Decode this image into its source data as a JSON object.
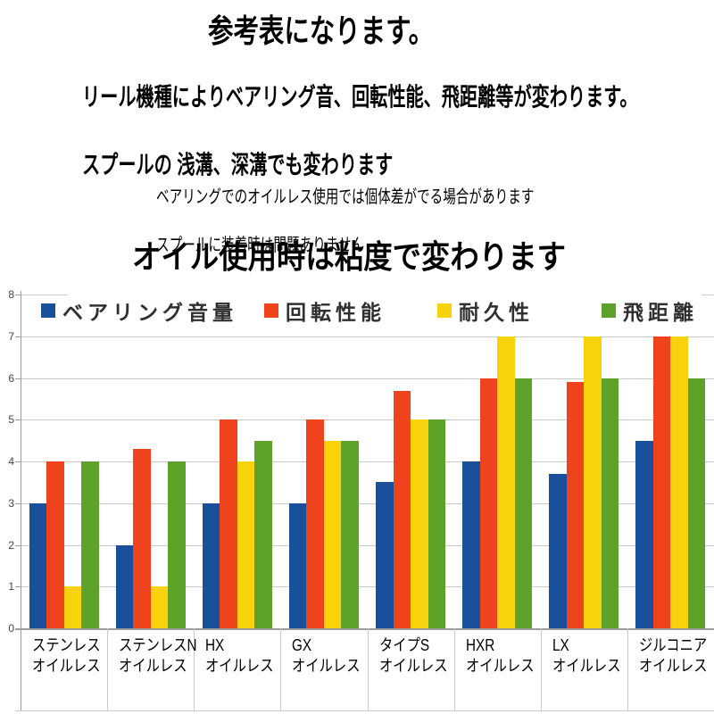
{
  "header": {
    "title": "参考表になります。",
    "para_line1": "リール機種によりベアリング音、回転性能、飛距離等が変わります。",
    "para_line2": "スプールの 浅溝、深溝でも変わります",
    "note_line1": "ベアリングでのオイルレス使用では個体差がでる場合があります",
    "note_line2": "スプールに装着時は問題ありません",
    "statement": "オイル使用時は粘度で変わります"
  },
  "chart_data": {
    "type": "bar",
    "title": "",
    "xlabel": "",
    "ylabel": "",
    "ylim": [
      0,
      8
    ],
    "ytick_interval": 1,
    "grid": true,
    "legend_position": "top",
    "categories": [
      {
        "line1": "ステンレス",
        "line2": "オイルレス"
      },
      {
        "line1": "ステンレスN",
        "line2": "オイルレス"
      },
      {
        "line1": "HX",
        "line2": "オイルレス"
      },
      {
        "line1": "GX",
        "line2": "オイルレス"
      },
      {
        "line1": "タイプS",
        "line2": "オイルレス"
      },
      {
        "line1": "HXR",
        "line2": "オイルレス"
      },
      {
        "line1": "LX",
        "line2": "オイルレス"
      },
      {
        "line1": "ジルコニア",
        "line2": "オイルレス"
      }
    ],
    "series": [
      {
        "name": "ベアリング音量",
        "color": "#1a4f9c",
        "values": [
          3,
          2,
          3,
          3,
          3.5,
          4,
          3.7,
          4.5
        ]
      },
      {
        "name": "回転性能",
        "color": "#ee431d",
        "values": [
          4,
          4.3,
          5,
          5,
          5.7,
          6,
          5.9,
          7
        ]
      },
      {
        "name": "耐久性",
        "color": "#f8d20a",
        "values": [
          1,
          1,
          4,
          4.5,
          5,
          7,
          7,
          7
        ]
      },
      {
        "name": "飛距離",
        "color": "#5da32a",
        "values": [
          4,
          4,
          4.5,
          4.5,
          5,
          6,
          6,
          6
        ]
      }
    ]
  }
}
